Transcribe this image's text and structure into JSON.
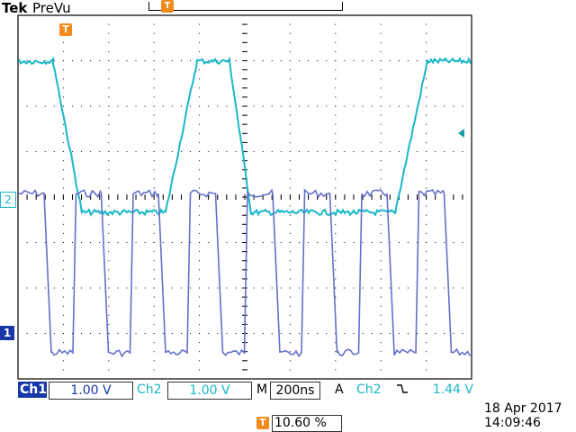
{
  "header": {
    "brand": "Tek",
    "mode": "PreVu",
    "trigger_marker_icon": "trigger-T-icon"
  },
  "channels": {
    "ch2_marker_label": "2",
    "ch1_marker_label": "1"
  },
  "readout": {
    "ch1_label": "Ch1",
    "ch1_scale": "1.00 V",
    "ch2_label": "Ch2",
    "ch2_scale": "1.00 V",
    "timebase_label": "M",
    "timebase_scale": "200ns",
    "trigger_mode": "A",
    "trigger_source": "Ch2",
    "trigger_slope_icon": "falling-edge-icon",
    "trigger_slope_glyph": "⌫",
    "trigger_level": "1.44 V"
  },
  "position": {
    "marker": "T",
    "value": "10.60 %"
  },
  "timestamp": {
    "date": "18 Apr  2017",
    "time": "14:09:46"
  },
  "colors": {
    "ch1": "#1838a8",
    "ch2": "#19b8c8",
    "trigger": "#f28a1c",
    "graticule": "#000000"
  }
}
